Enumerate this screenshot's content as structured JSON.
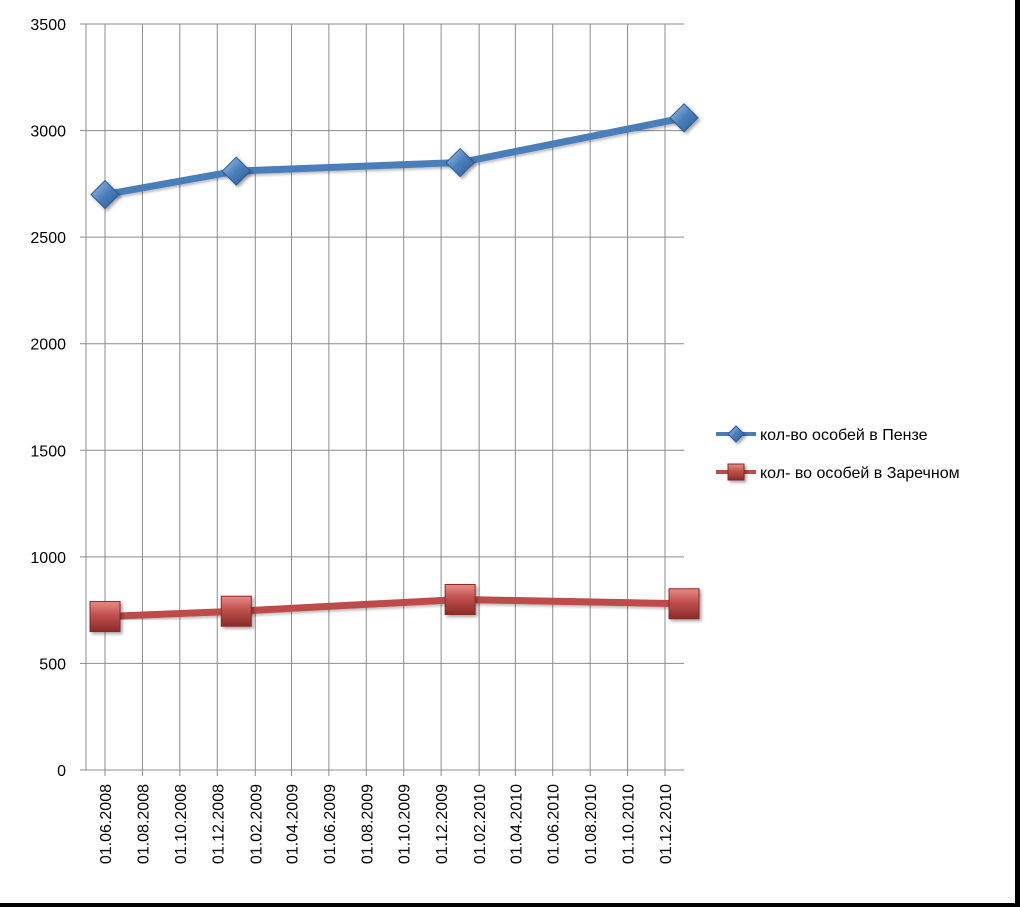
{
  "chart_data": {
    "type": "line",
    "title": "",
    "xlabel": "",
    "ylabel": "",
    "ylim": [
      0,
      3500
    ],
    "y_ticks": [
      0,
      500,
      1000,
      1500,
      2000,
      2500,
      3000,
      3500
    ],
    "y_tick_labels": [
      "0",
      "500",
      "1000",
      "1500",
      "2000",
      "2500",
      "3000",
      "3500"
    ],
    "x_range": [
      "2008-05-01",
      "2011-01-01"
    ],
    "x_tick_labels": [
      "01.06.2008",
      "01.08.2008",
      "01.10.2008",
      "01.12.2008",
      "01.02.2009",
      "01.04.2009",
      "01.06.2009",
      "01.08.2009",
      "01.10.2009",
      "01.12.2009",
      "01.02.2010",
      "01.04.2010",
      "01.06.2010",
      "01.08.2010",
      "01.10.2010",
      "01.12.2010"
    ],
    "x_ticks": [
      "2008-06-01",
      "2008-08-01",
      "2008-10-01",
      "2008-12-01",
      "2009-02-01",
      "2009-04-01",
      "2009-06-01",
      "2009-08-01",
      "2009-10-01",
      "2009-12-01",
      "2010-02-01",
      "2010-04-01",
      "2010-06-01",
      "2010-08-01",
      "2010-10-01",
      "2010-12-01"
    ],
    "grid": true,
    "legend_position": "right",
    "series": [
      {
        "name": "кол-во особей в Пензе",
        "color": "#4a7ebb",
        "marker": "diamond",
        "x": [
          "2008-06-01",
          "2009-01-01",
          "2010-01-01",
          "2011-01-01"
        ],
        "values": [
          2700,
          2810,
          2850,
          3060
        ]
      },
      {
        "name": "кол- во особей в Заречном",
        "color": "#be4b48",
        "marker": "square",
        "x": [
          "2008-06-01",
          "2009-01-01",
          "2010-01-01",
          "2011-01-01"
        ],
        "values": [
          720,
          745,
          800,
          780
        ]
      }
    ]
  }
}
